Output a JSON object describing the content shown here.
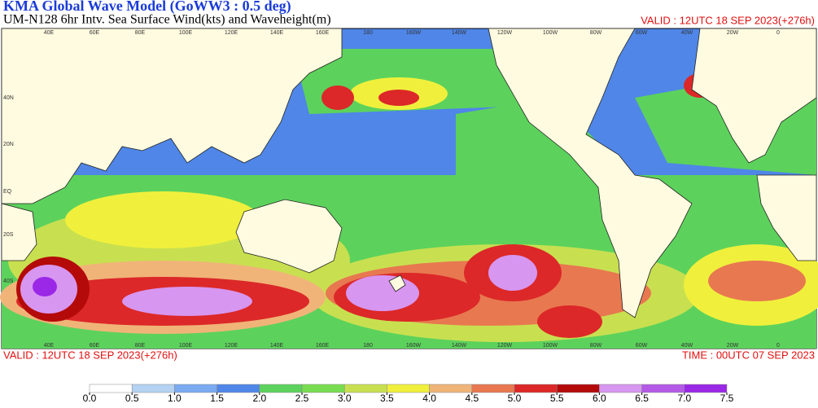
{
  "header": {
    "title": "KMA  Global Wave Model (GoWW3 : 0.5 deg)",
    "subtitle": "UM-N128  6hr Intv. Sea Surface Wind(kts) and Waveheight(m)",
    "valid": "VALID : 12UTC 18 SEP 2023(+276h)"
  },
  "map": {
    "lat_labels": [
      "40N",
      "20N",
      "EQ",
      "20S",
      "40S"
    ],
    "lon_labels": [
      "40E",
      "60E",
      "80E",
      "100E",
      "120E",
      "140E",
      "160E",
      "180",
      "160W",
      "140W",
      "120W",
      "100W",
      "80W",
      "60W",
      "40W",
      "20W",
      "0"
    ]
  },
  "footer": {
    "valid": "VALID : 12UTC 18 SEP 2023(+276h)",
    "time": "TIME : 00UTC 07 SEP 2023"
  },
  "colorbar": {
    "ticks": [
      {
        "value": 0,
        "label": "0.0"
      },
      {
        "value": 0.5,
        "label": "0.5"
      },
      {
        "value": 1,
        "label": "1.0"
      },
      {
        "value": 1.5,
        "label": "1.5"
      },
      {
        "value": 2,
        "label": "2.0"
      },
      {
        "value": 2.5,
        "label": "2.5"
      },
      {
        "value": 3,
        "label": "3.0"
      },
      {
        "value": 3.5,
        "label": "3.5"
      },
      {
        "value": 4,
        "label": "4.0"
      },
      {
        "value": 4.5,
        "label": "4.5"
      },
      {
        "value": 5,
        "label": "5.0"
      },
      {
        "value": 5.5,
        "label": "5.5"
      },
      {
        "value": 6,
        "label": "6.0"
      },
      {
        "value": 6.5,
        "label": "6.5"
      },
      {
        "value": 7,
        "label": "7.0"
      },
      {
        "value": 7.5,
        "label": "7.5"
      }
    ],
    "colors": [
      "#ffffff",
      "#b4d2f2",
      "#7aaaf0",
      "#4f86e8",
      "#5cd25c",
      "#78dc50",
      "#c8e050",
      "#f0f03c",
      "#f0b478",
      "#e87850",
      "#dc2828",
      "#b40a0a",
      "#d796f0",
      "#b45ae6",
      "#9a28e6"
    ]
  }
}
